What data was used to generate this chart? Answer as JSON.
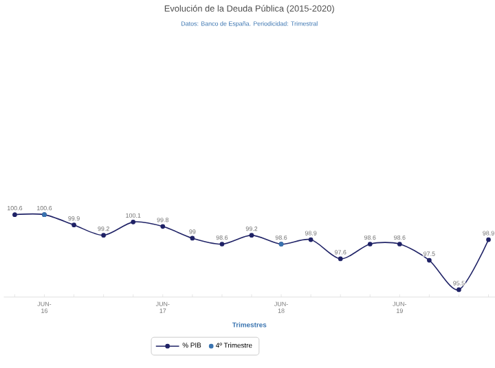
{
  "chart_data": {
    "type": "line",
    "title": "Evolución de la Deuda Pública (2015-2020)",
    "subtitle": "Datos: Banco de España. Periodicidad: Trimestral",
    "xlabel": "Trimestres",
    "categories": [
      null,
      "JUN-16",
      null,
      null,
      null,
      "JUN-17",
      null,
      null,
      null,
      "JUN-18",
      null,
      null,
      null,
      "JUN-19",
      null,
      null,
      null
    ],
    "series": [
      {
        "name": "% PIB",
        "color": "#1f2266",
        "values": [
          100.6,
          100.6,
          99.9,
          99.2,
          100.1,
          99.8,
          99,
          98.6,
          99.2,
          98.6,
          98.9,
          97.6,
          98.6,
          98.6,
          97.5,
          95.5,
          98.9
        ],
        "value_labels": [
          "100.6",
          "100.6",
          "99.9",
          "99.2",
          "100.1",
          "99.8",
          "99",
          "98.6",
          "99.2",
          "98.6",
          "98.9",
          "97.6",
          "98.6",
          "98.6",
          "97.5",
          "95.5",
          "98.9"
        ]
      },
      {
        "name": "4º Trimestre",
        "type": "scatter",
        "color": "#3a74b0",
        "values": [
          null,
          100.6,
          null,
          null,
          null,
          null,
          null,
          null,
          null,
          98.6,
          null,
          null,
          null,
          null,
          null,
          null,
          null
        ]
      }
    ],
    "legend": "bottom",
    "marker": "circle",
    "line_style": "solid"
  }
}
